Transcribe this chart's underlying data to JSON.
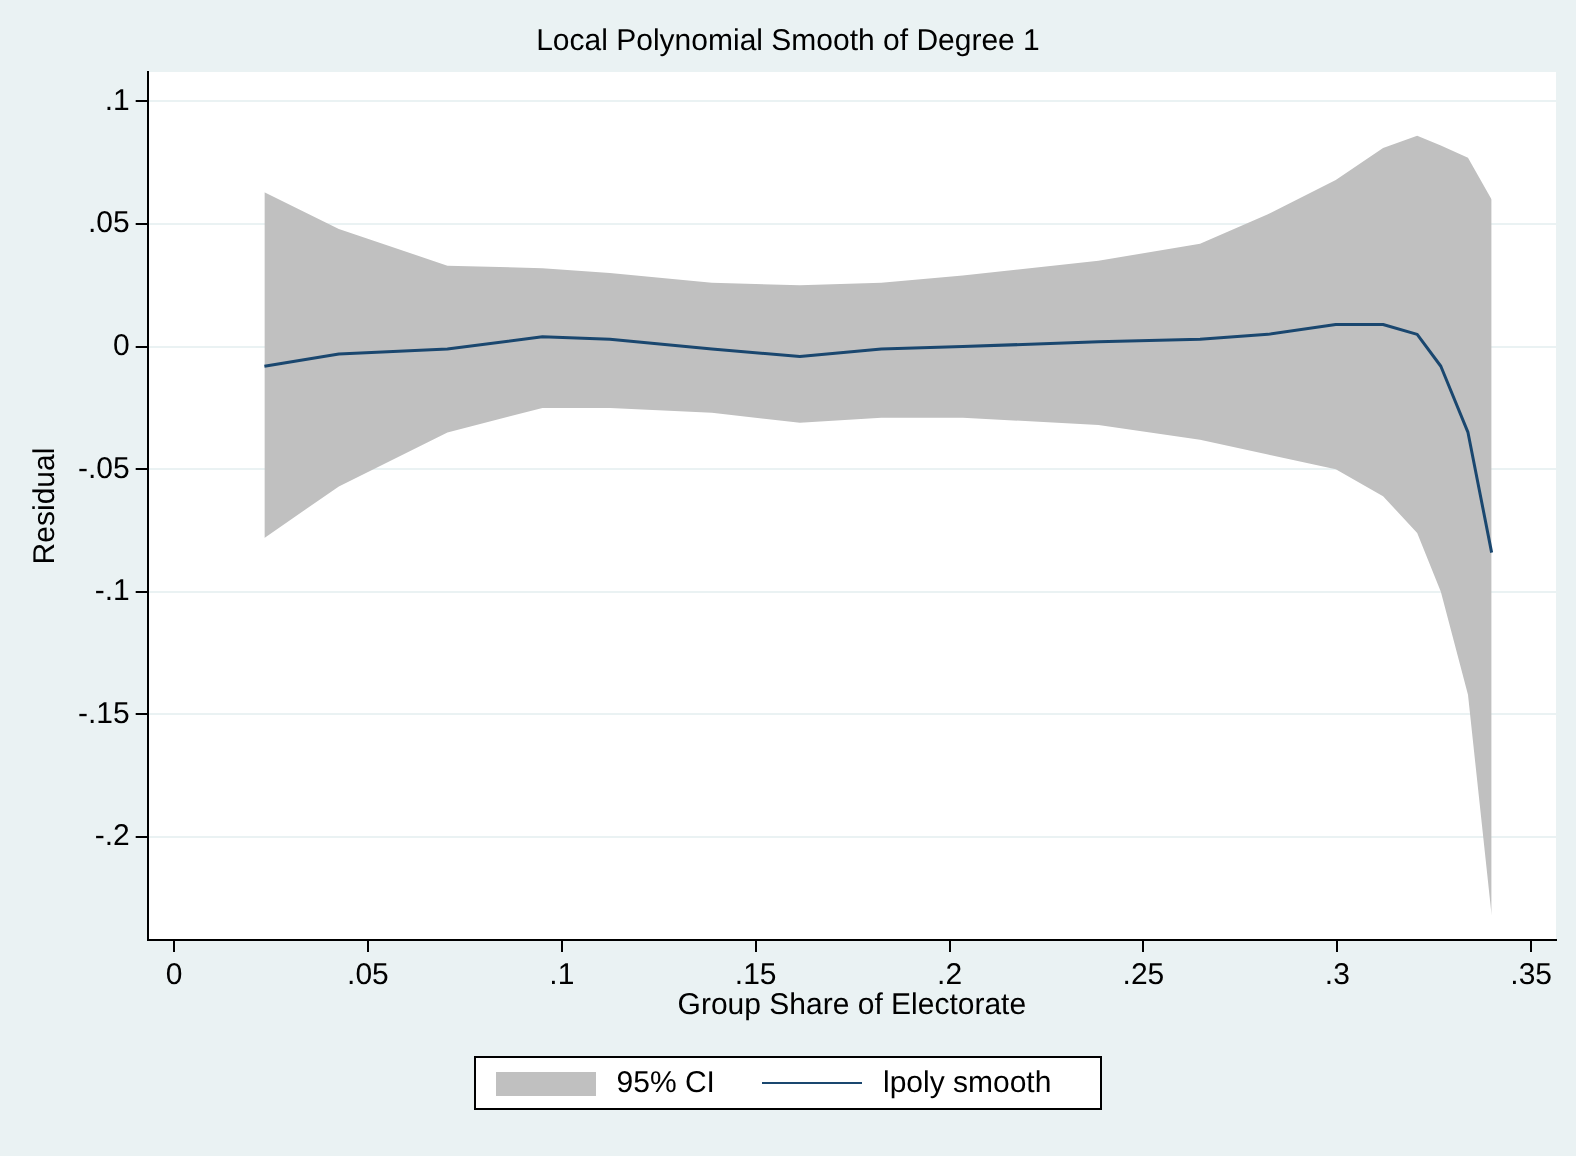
{
  "chart_data": {
    "type": "line",
    "title": "Local Polynomial Smooth of Degree 1",
    "xlabel": "Group Share of Electorate",
    "ylabel": "Residual",
    "annotations": [
      "95% CI"
    ],
    "x": [
      0.0233,
      0.0425,
      0.0705,
      0.095,
      0.1124,
      0.1387,
      0.1614,
      0.1824,
      0.2034,
      0.2384,
      0.2646,
      0.2821,
      0.2996,
      0.3118,
      0.3206,
      0.3267,
      0.3337,
      0.3398
    ],
    "series": [
      {
        "name": "lpoly smooth",
        "color": "#1a476f",
        "values": [
          -0.008,
          -0.003,
          -0.001,
          0.004,
          0.003,
          -0.001,
          -0.004,
          -0.001,
          0,
          0.002,
          0.003,
          0.005,
          0.009,
          0.009,
          0.005,
          -0.008,
          -0.035,
          -0.084
        ],
        "lower": [
          -0.078,
          -0.057,
          -0.035,
          -0.025,
          -0.025,
          -0.027,
          -0.031,
          -0.029,
          -0.029,
          -0.032,
          -0.038,
          -0.044,
          -0.05,
          -0.061,
          -0.076,
          -0.1,
          -0.142,
          -0.232
        ],
        "upper": [
          0.063,
          0.048,
          0.033,
          0.032,
          0.03,
          0.026,
          0.025,
          0.026,
          0.029,
          0.035,
          0.042,
          0.054,
          0.068,
          0.081,
          0.086,
          0.082,
          0.077,
          0.06
        ]
      }
    ],
    "xlim": [
      -0.0068,
      0.3564
    ],
    "xticks": [
      0,
      {
        "value": 0.05,
        "label": ".05"
      },
      {
        "value": 0.1,
        "label": ".1"
      },
      {
        "value": 0.15,
        "label": ".15"
      },
      {
        "value": 0.2,
        "label": ".2"
      },
      {
        "value": 0.25,
        "label": ".25"
      },
      {
        "value": 0.3,
        "label": ".3"
      },
      {
        "value": 0.35,
        "label": ".35"
      }
    ],
    "ylim": [
      -0.242,
      0.112
    ],
    "yticks": [
      {
        "value": -0.2,
        "label": "-.2"
      },
      {
        "value": -0.15,
        "label": "-.15"
      },
      {
        "value": -0.1,
        "label": "-.1"
      },
      {
        "value": -0.05,
        "label": "-.05"
      },
      0,
      {
        "value": 0.05,
        "label": ".05"
      },
      {
        "value": 0.1,
        "label": ".1"
      }
    ],
    "grid": "y",
    "legend": "bottom",
    "marker": "none",
    "line_style": "solid"
  }
}
